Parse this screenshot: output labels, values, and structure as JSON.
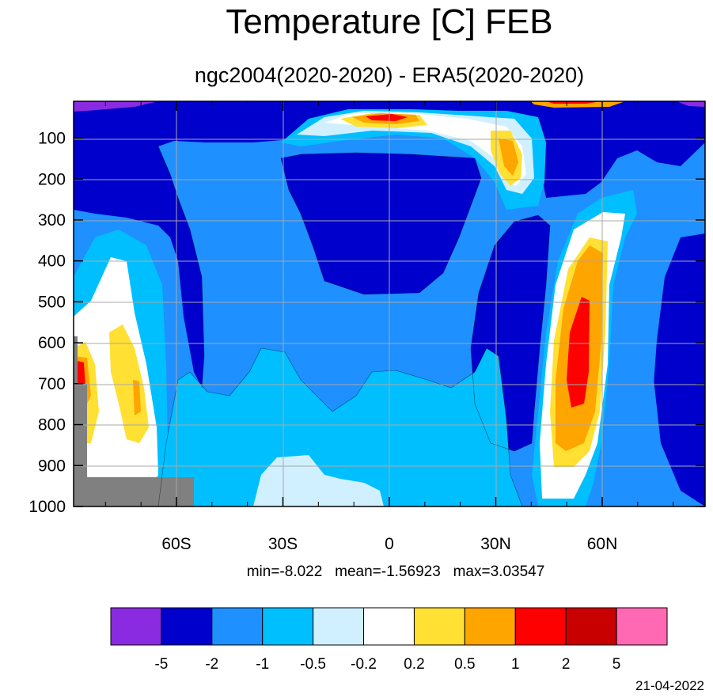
{
  "chart_data": {
    "type": "heatmap",
    "title": "Temperature [C] FEB",
    "subtitle": "ngc2004(2020-2020) - ERA5(2020-2020)",
    "x_ticks": [
      "60S",
      "30S",
      "0",
      "30N",
      "60N"
    ],
    "x_tick_values": [
      -60,
      -30,
      0,
      30,
      60
    ],
    "x_range": [
      -89,
      89
    ],
    "y_ticks": [
      "100",
      "200",
      "300",
      "400",
      "500",
      "600",
      "700",
      "800",
      "900",
      "1000"
    ],
    "y_tick_values": [
      100,
      200,
      300,
      400,
      500,
      600,
      700,
      800,
      900,
      1000
    ],
    "y_range": [
      10,
      1000
    ],
    "grid": true,
    "stats": "min=-8.022   mean=-1.56923   max=3.03547",
    "date": "21-04-2022",
    "colorbar": {
      "levels": [
        "-5",
        "-2",
        "-1",
        "-0.5",
        "-0.2",
        "0.2",
        "0.5",
        "1",
        "2",
        "5"
      ],
      "colors": [
        "#8a2be2",
        "#0000cd",
        "#1e90ff",
        "#00bfff",
        "#d0f0ff",
        "#ffffff",
        "#ffe033",
        "#ffa500",
        "#ff0000",
        "#c80000",
        "#ff69b4"
      ]
    }
  }
}
